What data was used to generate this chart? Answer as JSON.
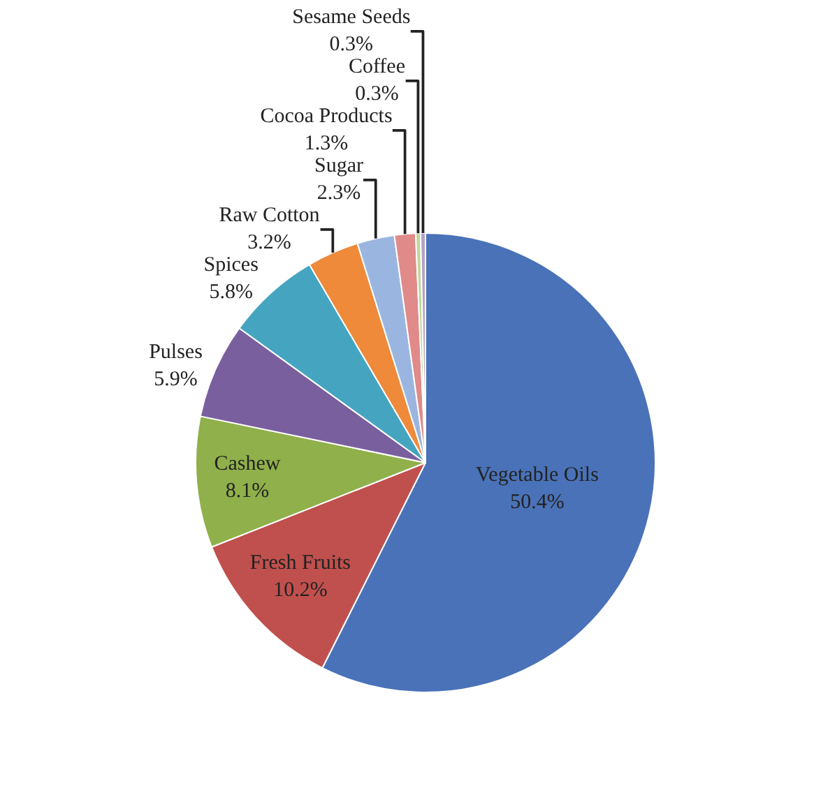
{
  "chart_data": {
    "type": "pie",
    "categories": [
      "Vegetable Oils",
      "Fresh Fruits",
      "Cashew",
      "Pulses",
      "Spices",
      "Raw Cotton",
      "Sugar",
      "Cocoa Products",
      "Coffee",
      "Sesame Seeds"
    ],
    "values": [
      50.4,
      10.2,
      8.1,
      5.9,
      5.8,
      3.2,
      2.3,
      1.3,
      0.3,
      0.3
    ],
    "value_labels": [
      "50.4%",
      "10.2%",
      "8.1%",
      "5.9%",
      "5.8%",
      "3.2%",
      "2.3%",
      "1.3%",
      "0.3%",
      "0.3%"
    ],
    "colors": [
      "#4a72b8",
      "#c0504d",
      "#8fb04a",
      "#7a5f9e",
      "#45a5c0",
      "#ee8a3a",
      "#9ab6e0",
      "#e08a8a",
      "#c3d69b",
      "#b3a2c7"
    ],
    "legend": false
  }
}
